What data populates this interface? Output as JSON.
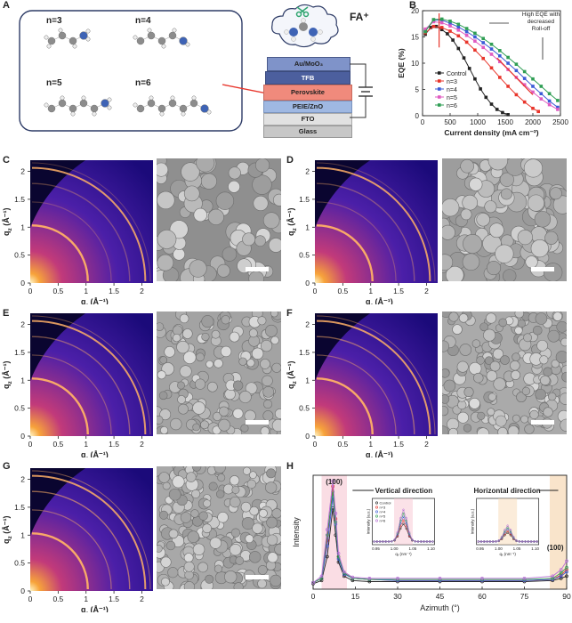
{
  "panel_labels": {
    "A": "A",
    "B": "B",
    "C": "C",
    "D": "D",
    "E": "E",
    "F": "F",
    "G": "G",
    "H": "H"
  },
  "panelA": {
    "molecules": [
      "n=3",
      "n=4",
      "n=5",
      "n=6"
    ],
    "cation_label": "FA⁺",
    "device_layers": [
      "Au/MoO₃",
      "TFB",
      "Perovskite",
      "PEIE/ZnO",
      "FTO",
      "Glass"
    ],
    "colors": {
      "au": "#7f93c9",
      "tfb": "#4c5f9e",
      "perovskite": "#f08a7c",
      "peie": "#9fb8e2",
      "fto": "#e1e1e1",
      "glass": "#c7c7c7",
      "box": "#2d3b66",
      "arrow": "#e8352b"
    }
  },
  "chart_data": [
    {
      "type": "line",
      "panel": "B",
      "xlabel": "Current density (mA cm⁻²)",
      "ylabel": "EQE (%)",
      "xlim": [
        0,
        2500
      ],
      "ylim": [
        0,
        20
      ],
      "xticks": [
        "0",
        "500",
        "1000",
        "1500",
        "2000",
        "2500"
      ],
      "yticks": [
        "0",
        "5",
        "10",
        "15",
        "20"
      ],
      "annotation": "High EQE with decreased Roll-off",
      "legend_placement": "bottom-left",
      "series": [
        {
          "name": "Control",
          "color": "#222222",
          "x": [
            50,
            150,
            250,
            350,
            450,
            550,
            650,
            750,
            850,
            950,
            1050,
            1150,
            1250,
            1350,
            1450,
            1550
          ],
          "y": [
            15.5,
            16.8,
            17.0,
            16.4,
            15.6,
            14.4,
            12.8,
            11.0,
            9.0,
            7.0,
            5.1,
            3.5,
            2.2,
            1.2,
            0.6,
            0.2
          ]
        },
        {
          "name": "n=3",
          "color": "#e8352b",
          "x": [
            50,
            200,
            350,
            500,
            650,
            800,
            950,
            1100,
            1250,
            1400,
            1550,
            1700,
            1850,
            2000,
            2100
          ],
          "y": [
            15.8,
            17.0,
            16.8,
            16.1,
            15.2,
            14.0,
            12.5,
            10.9,
            9.1,
            7.3,
            5.6,
            4.0,
            2.6,
            1.4,
            0.8
          ]
        },
        {
          "name": "n=4",
          "color": "#3b5bd6",
          "x": [
            50,
            200,
            350,
            500,
            650,
            800,
            950,
            1100,
            1250,
            1400,
            1550,
            1700,
            1850,
            2000,
            2150,
            2300,
            2450
          ],
          "y": [
            16.2,
            18.2,
            18.2,
            17.6,
            16.9,
            16.0,
            15.0,
            13.9,
            12.7,
            11.4,
            10.0,
            8.6,
            7.1,
            5.6,
            4.2,
            2.8,
            1.6
          ]
        },
        {
          "name": "n=5",
          "color": "#e05bc1",
          "x": [
            50,
            200,
            350,
            500,
            650,
            800,
            950,
            1100,
            1250,
            1400,
            1550,
            1700,
            1850,
            2000,
            2150,
            2300,
            2450
          ],
          "y": [
            16.5,
            17.9,
            17.7,
            17.1,
            16.3,
            15.3,
            14.2,
            13.0,
            11.7,
            10.3,
            8.8,
            7.3,
            5.9,
            4.5,
            3.2,
            2.1,
            1.2
          ]
        },
        {
          "name": "n=6",
          "color": "#2f9e54",
          "x": [
            50,
            200,
            350,
            500,
            650,
            800,
            950,
            1100,
            1250,
            1400,
            1550,
            1700,
            1850,
            2000,
            2150,
            2300,
            2450
          ],
          "y": [
            16.0,
            18.3,
            18.4,
            18.0,
            17.4,
            16.6,
            15.7,
            14.7,
            13.6,
            12.4,
            11.1,
            9.8,
            8.4,
            7.0,
            5.6,
            4.2,
            2.9
          ]
        }
      ]
    },
    {
      "type": "line",
      "panel": "H",
      "xlabel": "Azimuth (°)",
      "ylabel": "Intensity",
      "xlim": [
        0,
        90
      ],
      "xticks": [
        "0",
        "15",
        "30",
        "45",
        "60",
        "75",
        "90"
      ],
      "annotations": [
        "(100)",
        "Vertical direction",
        "Horizontal direction",
        "(100)"
      ],
      "series": [
        {
          "name": "Control",
          "color": "#222222",
          "x": [
            0,
            3,
            5,
            7,
            8,
            9,
            11,
            14,
            20,
            30,
            45,
            60,
            75,
            85,
            88,
            90
          ],
          "y": [
            0.05,
            0.08,
            0.3,
            0.75,
            0.5,
            0.25,
            0.12,
            0.08,
            0.07,
            0.07,
            0.07,
            0.07,
            0.07,
            0.08,
            0.1,
            0.12
          ]
        },
        {
          "name": "n=3",
          "color": "#e8352b",
          "x": [
            0,
            3,
            5,
            7,
            8,
            9,
            11,
            14,
            20,
            30,
            45,
            60,
            75,
            85,
            88,
            90
          ],
          "y": [
            0.06,
            0.1,
            0.45,
            0.95,
            0.65,
            0.3,
            0.15,
            0.1,
            0.09,
            0.08,
            0.08,
            0.08,
            0.08,
            0.09,
            0.13,
            0.18
          ]
        },
        {
          "name": "n=4",
          "color": "#3b5bd6",
          "x": [
            0,
            3,
            5,
            7,
            8,
            9,
            11,
            14,
            20,
            30,
            45,
            60,
            75,
            85,
            88,
            90
          ],
          "y": [
            0.06,
            0.1,
            0.4,
            0.85,
            0.6,
            0.28,
            0.14,
            0.1,
            0.09,
            0.08,
            0.08,
            0.08,
            0.08,
            0.09,
            0.12,
            0.16
          ]
        },
        {
          "name": "n=5",
          "color": "#2f9e54",
          "x": [
            0,
            3,
            5,
            7,
            8,
            9,
            11,
            14,
            20,
            30,
            45,
            60,
            75,
            85,
            88,
            90
          ],
          "y": [
            0.06,
            0.1,
            0.5,
            0.9,
            0.62,
            0.3,
            0.15,
            0.1,
            0.09,
            0.09,
            0.09,
            0.09,
            0.09,
            0.1,
            0.15,
            0.2
          ]
        },
        {
          "name": "n=6",
          "color": "#b86fd6",
          "x": [
            0,
            3,
            5,
            7,
            8,
            9,
            11,
            14,
            20,
            30,
            45,
            60,
            75,
            85,
            88,
            90
          ],
          "y": [
            0.06,
            0.12,
            0.55,
            1.0,
            0.7,
            0.33,
            0.16,
            0.11,
            0.1,
            0.1,
            0.1,
            0.1,
            0.1,
            0.12,
            0.18,
            0.26
          ]
        }
      ],
      "inset_vertical": {
        "xlabel": "qₓ (nm⁻¹)",
        "ylabel": "Intensity (a.u.)",
        "xticks": [
          "0.95",
          "1.00",
          "1.05",
          "1.10"
        ],
        "legend": [
          "Control",
          "n=3",
          "n=4",
          "n=5",
          "n=6"
        ]
      },
      "inset_horizontal": {
        "xlabel": "qₓ (nm⁻¹)",
        "ylabel": "Intensity (a.u.)",
        "xticks": [
          "0.95",
          "1.00",
          "1.05",
          "1.10"
        ]
      }
    }
  ],
  "giwaxs": {
    "xlabel_main": "q",
    "xlabel_sub": "r",
    "ylabel_main": "q",
    "ylabel_sub": "z",
    "unit": "(Å⁻¹)",
    "xticks": [
      "0",
      "0.5",
      "1",
      "1.5",
      "2"
    ],
    "yticks": [
      "0",
      "0.5",
      "1",
      "1.5",
      "2"
    ]
  }
}
